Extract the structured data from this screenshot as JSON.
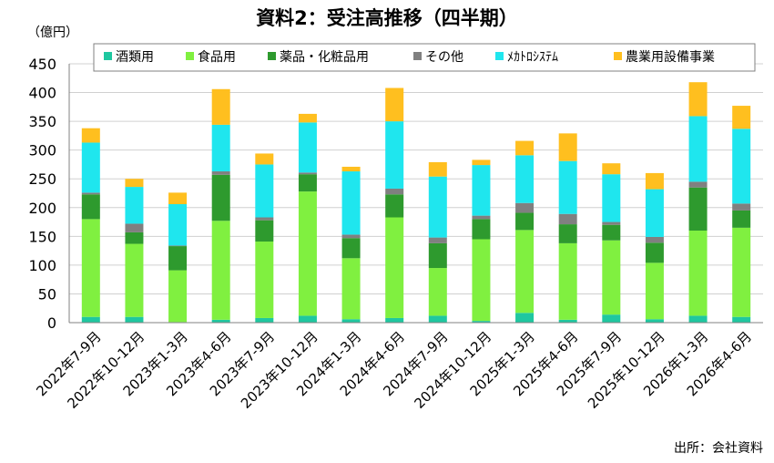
{
  "chart_data": {
    "type": "bar",
    "stacked": true,
    "title": "資料2：受注高推移（四半期）",
    "unit_label": "（億円）",
    "source": "出所：会社資料",
    "legend_position": "top",
    "grid": true,
    "ylim": [
      0,
      450
    ],
    "yticks": [
      0,
      50,
      100,
      150,
      200,
      250,
      300,
      350,
      400,
      450
    ],
    "categories": [
      "2022年7-9月",
      "2022年10-12月",
      "2023年1-3月",
      "2023年4-6月",
      "2023年7-9月",
      "2023年10-12月",
      "2024年1-3月",
      "2024年4-6月",
      "2024年7-9月",
      "2024年10-12月",
      "2025年1-3月",
      "2025年4-6月",
      "2025年7-9月",
      "2025年10-12月",
      "2026年1-3月",
      "2026年4-6月"
    ],
    "series": [
      {
        "name": "酒類用",
        "color": "#1fc7a0",
        "values": [
          10,
          10,
          1,
          5,
          8,
          12,
          6,
          8,
          12,
          3,
          17,
          5,
          14,
          6,
          12,
          10
        ]
      },
      {
        "name": "食品用",
        "color": "#80f040",
        "values": [
          170,
          127,
          90,
          172,
          133,
          216,
          106,
          175,
          83,
          142,
          144,
          133,
          129,
          98,
          148,
          155
        ]
      },
      {
        "name": "薬品・化粧品用",
        "color": "#2e9a2e",
        "values": [
          43,
          20,
          42,
          80,
          37,
          30,
          35,
          40,
          43,
          35,
          30,
          33,
          27,
          35,
          75,
          30
        ]
      },
      {
        "name": "その他",
        "color": "#808080",
        "values": [
          3,
          15,
          1,
          6,
          5,
          3,
          6,
          10,
          10,
          6,
          17,
          18,
          5,
          10,
          10,
          12
        ]
      },
      {
        "name": "ﾒｶﾄﾛｼｽﾃﾑ",
        "color": "#1fe6ee",
        "values": [
          87,
          64,
          72,
          81,
          92,
          87,
          110,
          117,
          106,
          88,
          83,
          92,
          83,
          83,
          114,
          130
        ]
      },
      {
        "name": "農業用設備事業",
        "color": "#ffbf1f",
        "values": [
          25,
          14,
          20,
          62,
          19,
          15,
          8,
          58,
          25,
          9,
          25,
          48,
          19,
          28,
          59,
          40
        ]
      }
    ]
  }
}
